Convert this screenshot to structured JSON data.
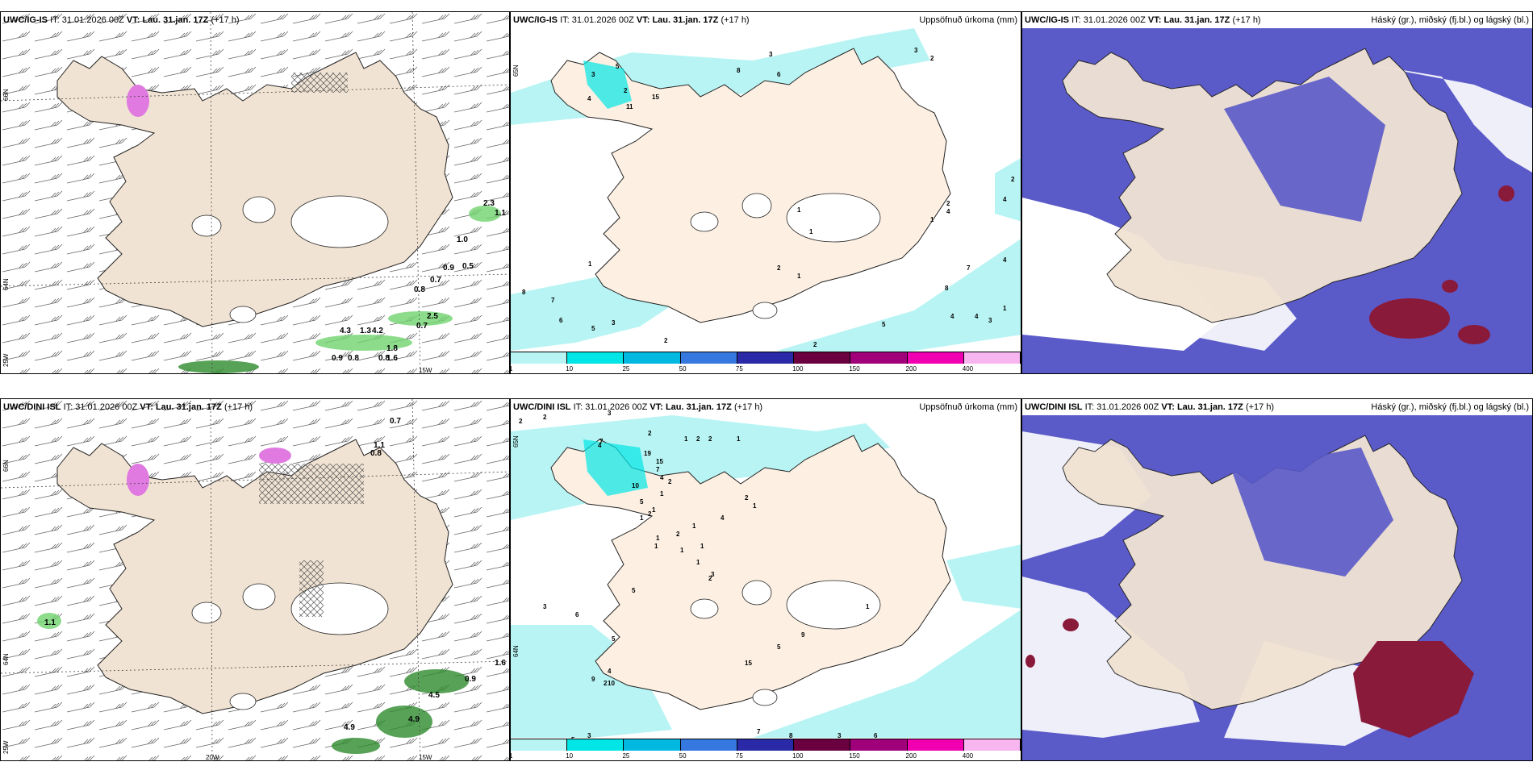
{
  "rows": [
    {
      "model": "UWC/IG-IS",
      "it_label": "IT:",
      "it": "31.01.2026 00Z",
      "vt_label": "VT:",
      "vt": "Lau. 31.jan. 17Z",
      "lead": "(+17 h)"
    },
    {
      "model": "UWC/DINI ISL",
      "it_label": "IT:",
      "it": "31.01.2026 00Z",
      "vt_label": "VT:",
      "vt": "Lau. 31.jan. 17Z",
      "lead": "(+17 h)"
    }
  ],
  "precip_title": "Uppsöfnuð úrkoma (mm)",
  "cloud_title": "Háský (gr.), miðský (fj.bl.) og lágský (bl.)",
  "axes": {
    "lat_66": "66N",
    "lat_64": "64N",
    "lat_65": "65N",
    "lon_25": "25W",
    "lon_20": "20W",
    "lon_15": "15W"
  },
  "colorbar": {
    "ticks": [
      "1",
      "10",
      "25",
      "50",
      "75",
      "100",
      "150",
      "200",
      "400"
    ],
    "colors": [
      "#b8f4f4",
      "#00e5e5",
      "#00b8e0",
      "#3478e0",
      "#2a2aa8",
      "#6a0040",
      "#a0007a",
      "#f000b0",
      "#f7b6f0"
    ]
  },
  "colors": {
    "land": "#f1e3d3",
    "land_precip": "#fdf0e3",
    "glacier": "#ffffff",
    "precip_light": "#b8f4f4",
    "cloud_mid": "#5a5ac8",
    "cloud_high": "#8a1a3a",
    "gust_green": "#6fd36f"
  },
  "wind_labels_top": [
    "2.3",
    "1.1",
    "1.0",
    "0.9",
    "0.5",
    "0.7",
    "0.8",
    "2.5",
    "0.7",
    "4.3",
    "1.3",
    "4.2",
    "1.8",
    "1.6",
    "0.9",
    "0.8",
    "0.8"
  ],
  "wind_labels_bottom": [
    "0.7",
    "1.1",
    "0.8",
    "1.1",
    "0.9",
    "1.6",
    "4.9",
    "4.9",
    "4.5"
  ],
  "precip_labels_top": [
    "4",
    "2",
    "2",
    "3",
    "5",
    "3",
    "2",
    "8",
    "6",
    "3",
    "11",
    "15",
    "4",
    "1",
    "1",
    "1",
    "1",
    "2",
    "1",
    "2",
    "4",
    "7",
    "4",
    "8",
    "5",
    "4",
    "4",
    "3",
    "1",
    "2",
    "8",
    "7",
    "6",
    "5",
    "3",
    "2"
  ],
  "precip_labels_bottom": [
    "2",
    "2",
    "3",
    "2",
    "4",
    "7",
    "19",
    "15",
    "10",
    "1",
    "2",
    "1",
    "2",
    "7",
    "4",
    "2",
    "1",
    "1",
    "2",
    "5",
    "1",
    "1",
    "1",
    "2",
    "1",
    "2",
    "1",
    "4",
    "1",
    "1",
    "1",
    "2",
    "3",
    "5",
    "3",
    "10",
    "6",
    "9",
    "5",
    "3",
    "2",
    "5",
    "4",
    "5",
    "9",
    "15",
    "8",
    "7",
    "3",
    "6",
    "1"
  ]
}
